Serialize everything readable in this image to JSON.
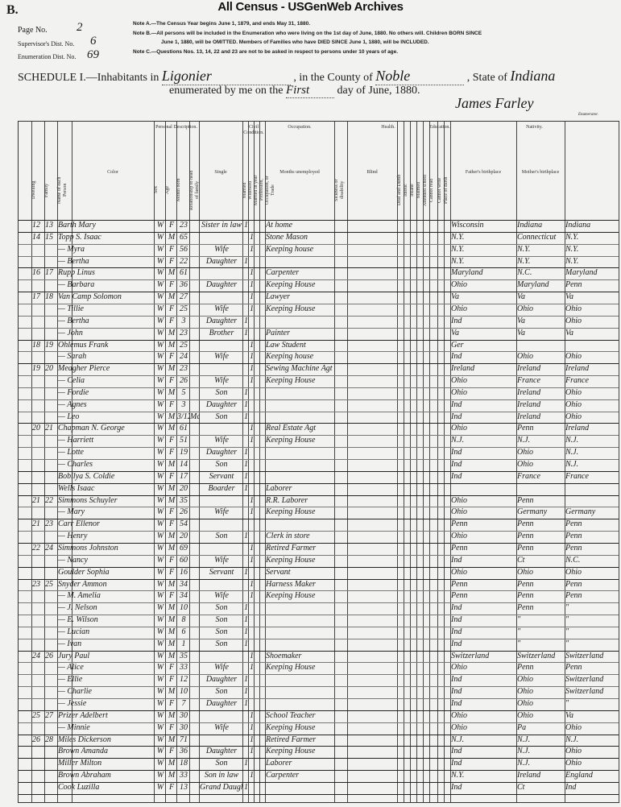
{
  "watermark": "All Census - USGenWeb Archives",
  "sheet_letter": "B.",
  "page_no": {
    "label": "Page No.",
    "value": "2"
  },
  "supervisor": {
    "label": "Supervisor's Dist. No.",
    "value": "6"
  },
  "enumeration": {
    "label": "Enumeration Dist. No.",
    "value": "69"
  },
  "notes": [
    "Note A.—The Census Year begins June 1, 1879, and ends May 31, 1880.",
    "Note B.—All persons will be included in the Enumeration who were living on the 1st day of June, 1880. No others will. Children BORN SINCE",
    "June 1, 1880, will be OMITTED. Members of Families who have DIED SINCE June 1, 1880, will be INCLUDED.",
    "Note C.—Questions Nos. 13, 14, 22 and 23 are not to be asked in respect to persons under 10 years of age."
  ],
  "schedule": {
    "prefix": "SCHEDULE I.—Inhabitants in",
    "place": "Ligonier",
    "county_label": ", in the County of",
    "county": "Noble",
    "state_label": ", State of",
    "state": "Indiana",
    "enum_label": "enumerated by me on the",
    "day": "First",
    "date_suffix": "day of June, 1880.",
    "enumerator": "James Farley",
    "enumerator_label": "Enumerator."
  },
  "column_groups": [
    "Personal Description.",
    "Civil Condition.",
    "Occupation.",
    "Health.",
    "Education.",
    "Nativity."
  ],
  "column_heads": [
    "Dwelling",
    "Family",
    "Name of each Person",
    "Color",
    "Sex",
    "Age",
    "Month born",
    "Relationship to head of family",
    "Single",
    "Married",
    "Widowed",
    "Married in year",
    "Profession, Occupation, or Trade",
    "Months unemployed",
    "Sickness or disability",
    "Blind",
    "Deaf and Dumb",
    "Idiotic",
    "Insane",
    "Maimed",
    "Attended school",
    "Cannot read",
    "Cannot write",
    "Place of Birth",
    "Father's birthplace",
    "Mother's birthplace"
  ],
  "rows": [
    [
      "12",
      "13",
      "Barth Mary",
      "W",
      "F",
      "23",
      "",
      "Sister in law",
      "1",
      "",
      "At home",
      "Wisconsin",
      "Indiana",
      "Indiana"
    ],
    [
      "14",
      "15",
      "Topp S. Isaac",
      "W",
      "M",
      "65",
      "",
      "",
      "",
      "1",
      "Stone Mason",
      "N.Y.",
      "Connecticut",
      "N.Y."
    ],
    [
      "",
      "",
      "— Myra",
      "W",
      "F",
      "56",
      "",
      "Wife",
      "",
      "1",
      "Keeping house",
      "N.Y.",
      "N.Y.",
      "N.Y."
    ],
    [
      "",
      "",
      "— Bertha",
      "W",
      "F",
      "22",
      "",
      "Daughter",
      "1",
      "",
      "",
      "N.Y.",
      "N.Y.",
      "N.Y."
    ],
    [
      "16",
      "17",
      "Rupp Linus",
      "W",
      "M",
      "61",
      "",
      "",
      "",
      "1",
      "Carpenter",
      "Maryland",
      "N.C.",
      "Maryland"
    ],
    [
      "",
      "",
      "— Barbara",
      "W",
      "F",
      "36",
      "",
      "Daughter",
      "",
      "1",
      "Keeping House",
      "Ohio",
      "Maryland",
      "Penn"
    ],
    [
      "17",
      "18",
      "Van Camp Solomon",
      "W",
      "M",
      "27",
      "",
      "",
      "",
      "1",
      "Lawyer",
      "Va",
      "Va",
      "Va"
    ],
    [
      "",
      "",
      "— Tillie",
      "W",
      "F",
      "25",
      "",
      "Wife",
      "",
      "1",
      "Keeping House",
      "Ohio",
      "Ohio",
      "Ohio"
    ],
    [
      "",
      "",
      "— Bertha",
      "W",
      "F",
      "3",
      "",
      "Daughter",
      "1",
      "",
      "",
      "Ind",
      "Va",
      "Ohio"
    ],
    [
      "",
      "",
      "— John",
      "W",
      "M",
      "23",
      "",
      "Brother",
      "1",
      "",
      "Painter",
      "Va",
      "Va",
      "Va"
    ],
    [
      "18",
      "19",
      "Ohlemus Frank",
      "W",
      "M",
      "25",
      "",
      "",
      "",
      "1",
      "Law Student",
      "Ger",
      "",
      ""
    ],
    [
      "",
      "",
      "— Sarah",
      "W",
      "F",
      "24",
      "",
      "Wife",
      "",
      "1",
      "Keeping house",
      "Ind",
      "Ohio",
      "Ohio"
    ],
    [
      "19",
      "20",
      "Meagher Pierce",
      "W",
      "M",
      "23",
      "",
      "",
      "",
      "1",
      "Sewing Machine Agt",
      "Ireland",
      "Ireland",
      "Ireland"
    ],
    [
      "",
      "",
      "— Celia",
      "W",
      "F",
      "26",
      "",
      "Wife",
      "",
      "1",
      "Keeping House",
      "Ohio",
      "France",
      "France"
    ],
    [
      "",
      "",
      "— Fordie",
      "W",
      "M",
      "5",
      "",
      "Son",
      "1",
      "",
      "",
      "Ohio",
      "Ireland",
      "Ohio"
    ],
    [
      "",
      "",
      "— Agnes",
      "W",
      "F",
      "3",
      "",
      "Daughter",
      "1",
      "",
      "",
      "Ind",
      "Ireland",
      "Ohio"
    ],
    [
      "",
      "",
      "— Leo",
      "W",
      "M",
      "3/12",
      "Mch",
      "Son",
      "1",
      "",
      "",
      "Ind",
      "Ireland",
      "Ohio"
    ],
    [
      "20",
      "21",
      "Chapman N. George",
      "W",
      "M",
      "61",
      "",
      "",
      "",
      "1",
      "Real Estate Agt",
      "Ohio",
      "Penn",
      "Ireland"
    ],
    [
      "",
      "",
      "— Harriett",
      "W",
      "F",
      "51",
      "",
      "Wife",
      "",
      "1",
      "Keeping House",
      "N.J.",
      "N.J.",
      "N.J."
    ],
    [
      "",
      "",
      "— Lotte",
      "W",
      "F",
      "19",
      "",
      "Daughter",
      "1",
      "",
      "",
      "Ind",
      "Ohio",
      "N.J."
    ],
    [
      "",
      "",
      "— Charles",
      "W",
      "M",
      "14",
      "",
      "Son",
      "1",
      "",
      "",
      "Ind",
      "Ohio",
      "N.J."
    ],
    [
      "",
      "",
      "Bobilya S. Coldie",
      "W",
      "F",
      "17",
      "",
      "Servant",
      "1",
      "",
      "",
      "Ind",
      "France",
      "France"
    ],
    [
      "",
      "",
      "Wells Isaac",
      "W",
      "M",
      "20",
      "",
      "Boarder",
      "1",
      "",
      "Laborer",
      "",
      "",
      ""
    ],
    [
      "21",
      "22",
      "Simmons Schuyler",
      "W",
      "M",
      "35",
      "",
      "",
      "",
      "1",
      "R.R. Laborer",
      "Ohio",
      "Penn",
      ""
    ],
    [
      "",
      "",
      "— Mary",
      "W",
      "F",
      "26",
      "",
      "Wife",
      "",
      "1",
      "Keeping House",
      "Ohio",
      "Germany",
      "Germany"
    ],
    [
      "21",
      "23",
      "Carr Ellenor",
      "W",
      "F",
      "54",
      "",
      "",
      "",
      "",
      "",
      "Penn",
      "Penn",
      "Penn"
    ],
    [
      "",
      "",
      "— Henry",
      "W",
      "M",
      "20",
      "",
      "Son",
      "1",
      "",
      "Clerk in store",
      "Ohio",
      "Penn",
      "Penn"
    ],
    [
      "22",
      "24",
      "Simmons Johnston",
      "W",
      "M",
      "69",
      "",
      "",
      "",
      "1",
      "Retired Farmer",
      "Penn",
      "Penn",
      "Penn"
    ],
    [
      "",
      "",
      "— Nancy",
      "W",
      "F",
      "60",
      "",
      "Wife",
      "",
      "1",
      "Keeping House",
      "Ind",
      "Ct",
      "N.C."
    ],
    [
      "",
      "",
      "Goulder Sophia",
      "W",
      "F",
      "16",
      "",
      "Servant",
      "1",
      "",
      "Servant",
      "Ohio",
      "Ohio",
      "Ohio"
    ],
    [
      "23",
      "25",
      "Snyder Ammon",
      "W",
      "M",
      "34",
      "",
      "",
      "",
      "1",
      "Harness Maker",
      "Penn",
      "Penn",
      "Penn"
    ],
    [
      "",
      "",
      "— M. Amelia",
      "W",
      "F",
      "34",
      "",
      "Wife",
      "",
      "1",
      "Keeping House",
      "Penn",
      "Penn",
      "Penn"
    ],
    [
      "",
      "",
      "— J. Nelson",
      "W",
      "M",
      "10",
      "",
      "Son",
      "1",
      "",
      "",
      "Ind",
      "Penn",
      "\""
    ],
    [
      "",
      "",
      "— E. Wilson",
      "W",
      "M",
      "8",
      "",
      "Son",
      "1",
      "",
      "",
      "Ind",
      "\"",
      "\""
    ],
    [
      "",
      "",
      "— Lucian",
      "W",
      "M",
      "6",
      "",
      "Son",
      "1",
      "",
      "",
      "Ind",
      "\"",
      "\""
    ],
    [
      "",
      "",
      "— Ivan",
      "W",
      "M",
      "1",
      "",
      "Son",
      "1",
      "",
      "",
      "Ind",
      "\"",
      "\""
    ],
    [
      "24",
      "26",
      "Jury Paul",
      "W",
      "M",
      "35",
      "",
      "",
      "",
      "1",
      "Shoemaker",
      "Switzerland",
      "Switzerland",
      "Switzerland"
    ],
    [
      "",
      "",
      "— Alice",
      "W",
      "F",
      "33",
      "",
      "Wife",
      "",
      "1",
      "Keeping House",
      "Ohio",
      "Penn",
      "Penn"
    ],
    [
      "",
      "",
      "— Ellie",
      "W",
      "F",
      "12",
      "",
      "Daughter",
      "1",
      "",
      "",
      "Ind",
      "Ohio",
      "Switzerland"
    ],
    [
      "",
      "",
      "— Charlie",
      "W",
      "M",
      "10",
      "",
      "Son",
      "1",
      "",
      "",
      "Ind",
      "Ohio",
      "Switzerland"
    ],
    [
      "",
      "",
      "— Jessie",
      "W",
      "F",
      "7",
      "",
      "Daughter",
      "1",
      "",
      "",
      "Ind",
      "Ohio",
      "\""
    ],
    [
      "25",
      "27",
      "Prizer Adelbert",
      "W",
      "M",
      "30",
      "",
      "",
      "",
      "1",
      "School Teacher",
      "Ohio",
      "Ohio",
      "Va"
    ],
    [
      "",
      "",
      "— Minnie",
      "W",
      "F",
      "30",
      "",
      "Wife",
      "",
      "1",
      "Keeping House",
      "Ohio",
      "Pa",
      "Ohio"
    ],
    [
      "26",
      "28",
      "Miles Dickerson",
      "W",
      "M",
      "71",
      "",
      "",
      "",
      "1",
      "Retired Farmer",
      "N.J.",
      "N.J.",
      "N.J."
    ],
    [
      "",
      "",
      "Brown Amanda",
      "W",
      "F",
      "36",
      "",
      "Daughter",
      "",
      "1",
      "Keeping House",
      "Ind",
      "N.J.",
      "Ohio"
    ],
    [
      "",
      "",
      "Miller Milton",
      "W",
      "M",
      "18",
      "",
      "Son",
      "1",
      "",
      "Laborer",
      "Ind",
      "N.J.",
      "Ohio"
    ],
    [
      "",
      "",
      "Brown Abraham",
      "W",
      "M",
      "33",
      "",
      "Son in law",
      "",
      "1",
      "Carpenter",
      "N.Y.",
      "Ireland",
      "England"
    ],
    [
      "",
      "",
      "Cook Luzilla",
      "W",
      "F",
      "13",
      "",
      "Grand Daughter",
      "1",
      "",
      "",
      "Ind",
      "Ct",
      "Ind"
    ]
  ]
}
